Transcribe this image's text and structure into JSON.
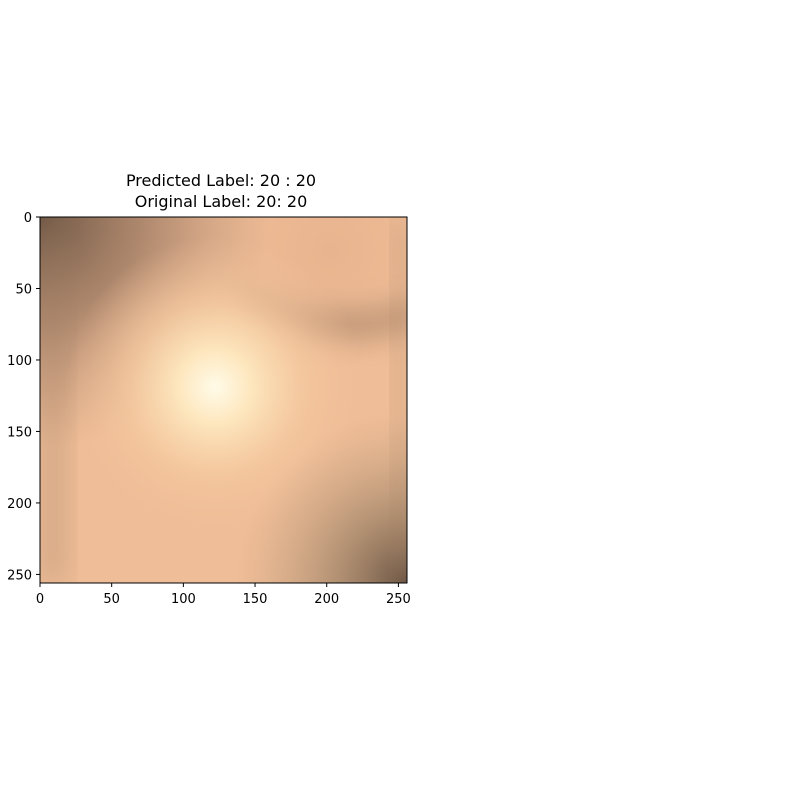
{
  "title": {
    "predicted": "Predicted Label: 20 : 20",
    "original": "Original Label: 20: 20"
  },
  "image": {
    "width": 256,
    "height": 256,
    "description_colors": {
      "base": "#f0c09a",
      "highlight": "#fffbe6",
      "dark_corner": "#6b5240"
    }
  },
  "axes": {
    "x_ticks": [
      "0",
      "50",
      "100",
      "150",
      "200",
      "250"
    ],
    "y_ticks": [
      "0",
      "50",
      "100",
      "150",
      "200",
      "250"
    ],
    "x_values": [
      0,
      50,
      100,
      150,
      200,
      250
    ],
    "y_values": [
      0,
      50,
      100,
      150,
      200,
      250
    ]
  }
}
